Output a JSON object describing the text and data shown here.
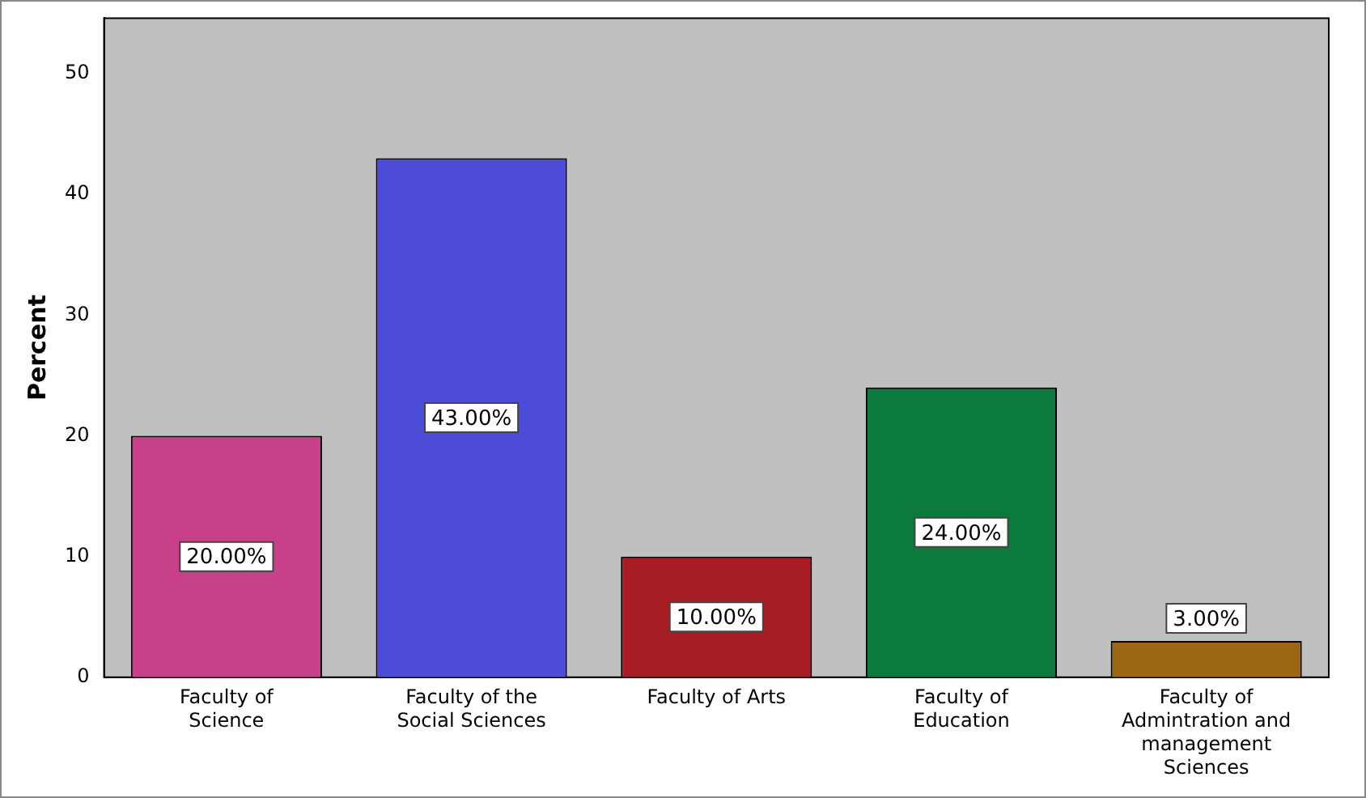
{
  "chart_data": {
    "type": "bar",
    "ylabel": "Percent",
    "categories": [
      "Faculty of Science",
      "Faculty of the Social Sciences",
      "Faculty of Arts",
      "Faculty of Education",
      "Faculty of Admintration and management Sciences"
    ],
    "values": [
      20,
      43,
      10,
      24,
      3
    ],
    "colors": [
      "#c8408a",
      "#4c4cd8",
      "#a81c24",
      "#0b7a3c",
      "#9c6612"
    ],
    "value_labels": [
      "20.00%",
      "43.00%",
      "10.00%",
      "24.00%",
      "3.00%"
    ],
    "ylim": [
      0,
      54.6
    ],
    "yticks": [
      0,
      10,
      20,
      30,
      40,
      50
    ],
    "grid": false,
    "legend": false
  }
}
